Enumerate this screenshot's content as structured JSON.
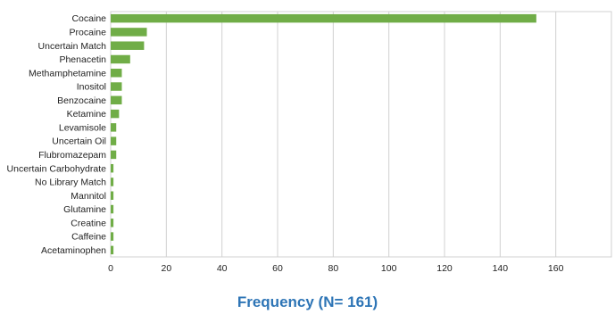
{
  "chart_data": {
    "type": "bar",
    "orientation": "horizontal",
    "categories": [
      "Cocaine",
      "Procaine",
      "Uncertain Match",
      "Phenacetin",
      "Methamphetamine",
      "Inositol",
      "Benzocaine",
      "Ketamine",
      "Levamisole",
      "Uncertain Oil",
      "Flubromazepam",
      "Uncertain Carbohydrate",
      "No Library Match",
      "Mannitol",
      "Glutamine",
      "Creatine",
      "Caffeine",
      "Acetaminophen"
    ],
    "values": [
      153,
      13,
      12,
      7,
      4,
      4,
      4,
      3,
      2,
      2,
      2,
      1,
      1,
      1,
      1,
      1,
      1,
      1
    ],
    "xlabel": "Frequency (N= 161)",
    "ylabel": "",
    "xlim": [
      0,
      180
    ],
    "xticks": [
      0,
      20,
      40,
      60,
      80,
      100,
      120,
      140,
      160
    ],
    "grid": "vertical",
    "legend": "none",
    "colors": {
      "bar": "#70ad47",
      "grid": "#d0d0d0",
      "axis_title": "#2e75b6",
      "text": "#222222"
    }
  }
}
